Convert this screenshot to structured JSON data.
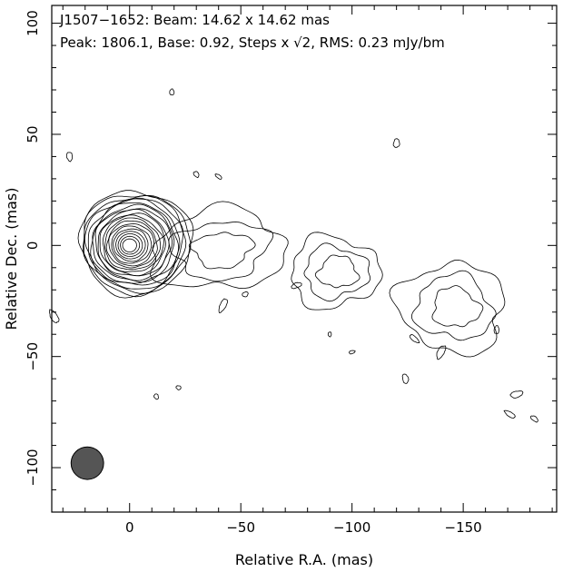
{
  "chart_data": {
    "type": "contour",
    "title_line1": "J1507−1652: Beam: 14.62 x 14.62 mas",
    "title_line2_pre": "Peak: 1806.1, Base: 0.92, Steps x ",
    "title_line2_sqrt": "√2",
    "title_line2_post": ", RMS: 0.23 mJy/bm",
    "xlabel": "Relative R.A. (mas)",
    "ylabel": "Relative Dec. (mas)",
    "xlim": [
      35,
      -192
    ],
    "ylim": [
      -120,
      108
    ],
    "x_ticks": [
      {
        "value": 0,
        "label": "0"
      },
      {
        "value": -50,
        "label": "−50"
      },
      {
        "value": -100,
        "label": "−100"
      },
      {
        "value": -150,
        "label": "−150"
      }
    ],
    "y_ticks": [
      {
        "value": 100,
        "label": "100"
      },
      {
        "value": 50,
        "label": "50"
      },
      {
        "value": 0,
        "label": "0"
      },
      {
        "value": -50,
        "label": "−50"
      },
      {
        "value": -100,
        "label": "−100"
      }
    ],
    "peak_mJy_per_beam": 1806.1,
    "base_contour_mJy_per_beam": 0.92,
    "contour_step_factor": "sqrt(2)",
    "rms_mJy_per_beam": 0.23,
    "beam": {
      "major_mas": 14.62,
      "minor_mas": 14.62,
      "center": [
        19,
        -98
      ],
      "fill": "#555555"
    },
    "core": {
      "center": [
        0,
        0
      ],
      "n_levels": 20,
      "min_radius_mas": 3,
      "max_radius_mas": 24
    },
    "line_color": "#000000",
    "jet_components": [
      {
        "name": "inner-jet",
        "center": [
          -40,
          -2
        ],
        "rx": 30,
        "ry": 18,
        "rotation_deg": -5,
        "levels": 3
      },
      {
        "name": "jet-knot-a",
        "center": [
          -92,
          -12
        ],
        "rx": 20,
        "ry": 16,
        "rotation_deg": 0,
        "levels": 3
      },
      {
        "name": "jet-knot-b",
        "center": [
          -145,
          -28
        ],
        "rx": 24,
        "ry": 20,
        "rotation_deg": 10,
        "levels": 3
      }
    ],
    "noise_islands": [
      [
        27,
        40
      ],
      [
        -19,
        69
      ],
      [
        -30,
        32
      ],
      [
        -40,
        31
      ],
      [
        -120,
        46
      ],
      [
        -42,
        -27
      ],
      [
        -52,
        -22
      ],
      [
        -90,
        -40
      ],
      [
        -100,
        -48
      ],
      [
        -124,
        -60
      ],
      [
        -12,
        -68
      ],
      [
        -22,
        -64
      ],
      [
        -174,
        -67
      ],
      [
        -171,
        -76
      ],
      [
        -182,
        -78
      ],
      [
        34,
        -32
      ],
      [
        -75,
        -18
      ],
      [
        -128,
        -42
      ],
      [
        -140,
        -48
      ],
      [
        -165,
        -38
      ]
    ]
  }
}
